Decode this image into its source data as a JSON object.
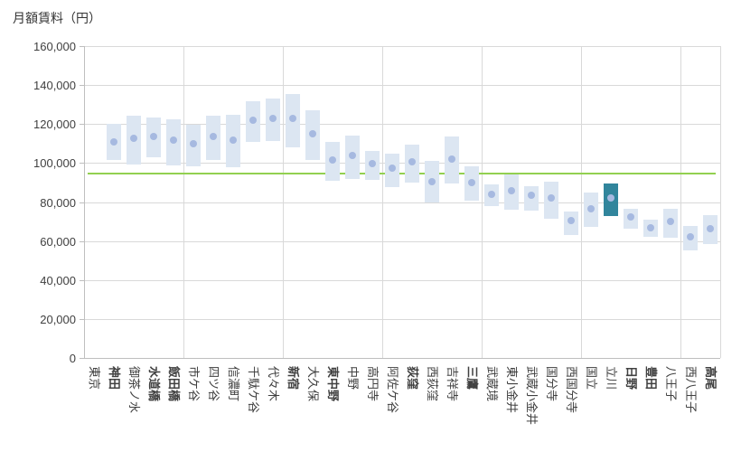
{
  "title": "月額賃料（円）",
  "colors": {
    "box_fill": "#dce6f2",
    "box_fill_highlight": "#31859c",
    "dot": "#a6b9e0",
    "reference_line": "#92d050",
    "gridline": "#d9d9d9",
    "axis_line": "#bfbfbf",
    "text": "#404040",
    "title_text": "#333333",
    "background": "#ffffff"
  },
  "chart_data": {
    "type": "bar",
    "subtype": "floating-range-boxes-with-median-dots",
    "title": "月額賃料（円）",
    "xlabel": "",
    "ylabel": "月額賃料（円）",
    "ylim": [
      0,
      160000
    ],
    "ytick_step": 20000,
    "ytick_labels": [
      "0",
      "20,000",
      "40,000",
      "60,000",
      "80,000",
      "100,000",
      "120,000",
      "140,000",
      "160,000"
    ],
    "grid": true,
    "legend_position": "none",
    "x_gridline_every_n_categories": 5,
    "reference_line": {
      "value": 94400,
      "color": "#92d050"
    },
    "highlighted_category": "立川",
    "categories": [
      "東京",
      "神田",
      "御茶ノ水",
      "水道橋",
      "飯田橋",
      "市ケ谷",
      "四ツ谷",
      "信濃町",
      "千駄ケ谷",
      "代々木",
      "新宿",
      "大久保",
      "東中野",
      "中野",
      "高円寺",
      "阿佐ケ谷",
      "荻窪",
      "西荻窪",
      "吉祥寺",
      "三鷹",
      "武蔵境",
      "東小金井",
      "武蔵小金井",
      "国分寺",
      "西国分寺",
      "国立",
      "立川",
      "日野",
      "豊田",
      "八王子",
      "西八王子",
      "高尾"
    ],
    "stations": [
      {
        "name": "東京",
        "min": null,
        "max": null,
        "point": null,
        "bold": false,
        "highlighted": false
      },
      {
        "name": "神田",
        "min": 101600,
        "max": 120000,
        "point": 111000,
        "bold": true,
        "highlighted": false
      },
      {
        "name": "御茶ノ水",
        "min": 99400,
        "max": 124100,
        "point": 112800,
        "bold": false,
        "highlighted": false
      },
      {
        "name": "水道橋",
        "min": 102900,
        "max": 123400,
        "point": 113500,
        "bold": true,
        "highlighted": false
      },
      {
        "name": "飯田橋",
        "min": 98900,
        "max": 122300,
        "point": 111600,
        "bold": true,
        "highlighted": false
      },
      {
        "name": "市ケ谷",
        "min": 98200,
        "max": 119800,
        "point": 109900,
        "bold": false,
        "highlighted": false
      },
      {
        "name": "四ツ谷",
        "min": 101400,
        "max": 124400,
        "point": 113500,
        "bold": false,
        "highlighted": false
      },
      {
        "name": "信濃町",
        "min": 97800,
        "max": 124900,
        "point": 111700,
        "bold": false,
        "highlighted": false
      },
      {
        "name": "千駄ケ谷",
        "min": 111000,
        "max": 131600,
        "point": 121800,
        "bold": false,
        "highlighted": false
      },
      {
        "name": "代々木",
        "min": 111400,
        "max": 133100,
        "point": 122900,
        "bold": false,
        "highlighted": false
      },
      {
        "name": "新宿",
        "min": 108200,
        "max": 135300,
        "point": 123000,
        "bold": true,
        "highlighted": false
      },
      {
        "name": "大久保",
        "min": 101400,
        "max": 127200,
        "point": 115100,
        "bold": false,
        "highlighted": false
      },
      {
        "name": "東中野",
        "min": 90900,
        "max": 111000,
        "point": 101700,
        "bold": true,
        "highlighted": false
      },
      {
        "name": "中野",
        "min": 91700,
        "max": 114100,
        "point": 103700,
        "bold": false,
        "highlighted": false
      },
      {
        "name": "高円寺",
        "min": 91400,
        "max": 106300,
        "point": 99700,
        "bold": false,
        "highlighted": false
      },
      {
        "name": "阿佐ケ谷",
        "min": 87800,
        "max": 104800,
        "point": 97300,
        "bold": false,
        "highlighted": false
      },
      {
        "name": "荻窪",
        "min": 90100,
        "max": 109400,
        "point": 100800,
        "bold": true,
        "highlighted": false
      },
      {
        "name": "西荻窪",
        "min": 79800,
        "max": 100900,
        "point": 90300,
        "bold": false,
        "highlighted": false
      },
      {
        "name": "吉祥寺",
        "min": 89400,
        "max": 113600,
        "point": 102000,
        "bold": false,
        "highlighted": false
      },
      {
        "name": "三鷹",
        "min": 80500,
        "max": 98200,
        "point": 89900,
        "bold": true,
        "highlighted": false
      },
      {
        "name": "武蔵境",
        "min": 77800,
        "max": 88900,
        "point": 84100,
        "bold": false,
        "highlighted": false
      },
      {
        "name": "東小金井",
        "min": 75900,
        "max": 94000,
        "point": 86000,
        "bold": false,
        "highlighted": false
      },
      {
        "name": "武蔵小金井",
        "min": 75500,
        "max": 88000,
        "point": 83300,
        "bold": false,
        "highlighted": false
      },
      {
        "name": "国分寺",
        "min": 71600,
        "max": 90400,
        "point": 82000,
        "bold": false,
        "highlighted": false
      },
      {
        "name": "西国分寺",
        "min": 63100,
        "max": 75000,
        "point": 70400,
        "bold": false,
        "highlighted": false
      },
      {
        "name": "国立",
        "min": 67200,
        "max": 85000,
        "point": 76600,
        "bold": false,
        "highlighted": false
      },
      {
        "name": "立川",
        "min": 73000,
        "max": 89600,
        "point": 82200,
        "bold": false,
        "highlighted": true
      },
      {
        "name": "日野",
        "min": 66200,
        "max": 76500,
        "point": 72300,
        "bold": true,
        "highlighted": false
      },
      {
        "name": "豊田",
        "min": 62000,
        "max": 70800,
        "point": 67000,
        "bold": true,
        "highlighted": false
      },
      {
        "name": "八王子",
        "min": 61500,
        "max": 76400,
        "point": 70000,
        "bold": false,
        "highlighted": false
      },
      {
        "name": "西八王子",
        "min": 55300,
        "max": 67700,
        "point": 62300,
        "bold": false,
        "highlighted": false
      },
      {
        "name": "高尾",
        "min": 58400,
        "max": 73100,
        "point": 66400,
        "bold": true,
        "highlighted": false
      }
    ]
  }
}
